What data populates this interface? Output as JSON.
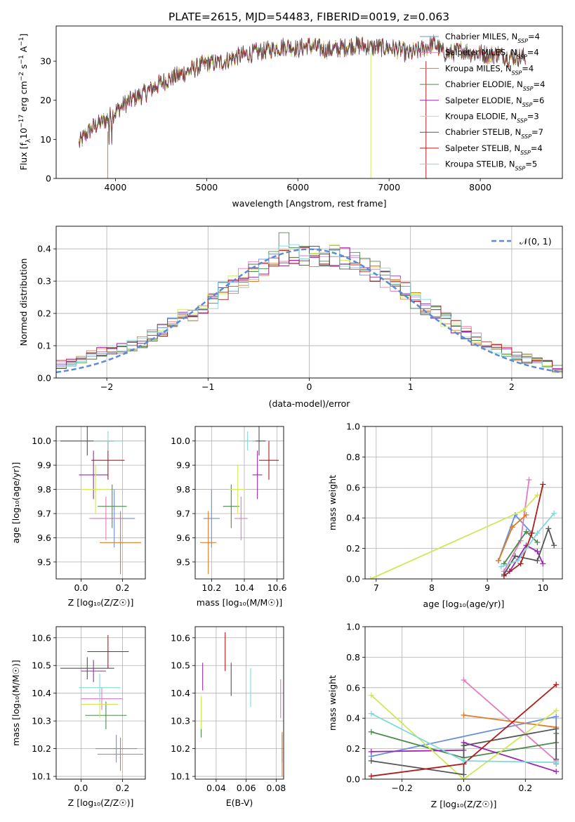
{
  "figure_title": "PLATE=2615, MJD=54483, FIBERID=0019, z=0.063",
  "colors": {
    "Chabrier MILES": "#6b8fd8",
    "Salpeter MILES": "#e07cc0",
    "Kroupa MILES": "#e07b28",
    "Chabrier ELODIE": "#4d8a4d",
    "Salpeter ELODIE": "#9b27b0",
    "Kroupa ELODIE": "#cfe85a",
    "Chabrier STELIB": "#555555",
    "Salpeter STELIB": "#b01c1c",
    "Kroupa STELIB": "#7fd8dc",
    "normal_curve": "#5b8ad6",
    "grid": "#b0b0b0"
  },
  "chart_data": [
    {
      "id": "spectrum",
      "type": "line",
      "title": "PLATE=2615, MJD=54483, FIBERID=0019, z=0.063",
      "xlabel": "wavelength [Angstrom, rest frame]",
      "ylabel_parts": [
        "Flux [f",
        "λ",
        "10",
        "−17",
        " erg cm",
        "−2",
        " s",
        "−1",
        " A",
        "−1",
        "]"
      ],
      "xlim": [
        3350,
        8900
      ],
      "ylim": [
        0,
        39
      ],
      "xticks": [
        "4000",
        "5000",
        "6000",
        "7000",
        "8000"
      ],
      "yticks": [
        "0",
        "10",
        "20",
        "30"
      ],
      "grid": false,
      "legend": "top-right",
      "continuum": {
        "x": [
          3600,
          3700,
          3800,
          3900,
          4000,
          4100,
          4200,
          4300,
          4400,
          4500,
          4600,
          4700,
          4800,
          4900,
          5000,
          5100,
          5200,
          5300,
          5400,
          5500,
          5600,
          5700,
          5800,
          5900,
          6000,
          6100,
          6200,
          6300,
          6400,
          6500,
          6600,
          6700,
          6800,
          6900,
          7000,
          7100,
          7200,
          7300,
          7400,
          7500,
          7600,
          7700,
          7800,
          7900,
          8000,
          8100,
          8200,
          8300,
          8400,
          8500
        ],
        "y": [
          9,
          12,
          14,
          15,
          17,
          19,
          20.5,
          21.5,
          23,
          24.5,
          25.5,
          26.5,
          27.5,
          28.5,
          29.5,
          29.5,
          30,
          31,
          31.5,
          32,
          32.5,
          33,
          33.5,
          34,
          33,
          34,
          33.5,
          33,
          33,
          33.5,
          34,
          34,
          33.5,
          33.5,
          33.5,
          33,
          32,
          32.5,
          33.5,
          34.5,
          32,
          32,
          33,
          32,
          32,
          31.5,
          32,
          31,
          31,
          31
        ]
      },
      "series": [
        {
          "name": "Chabrier MILES, N",
          "sub": "SSP",
          "tail": "=4"
        },
        {
          "name": "Salpeter MILES, N",
          "sub": "SSP",
          "tail": "=4"
        },
        {
          "name": "Kroupa MILES, N",
          "sub": "SSP",
          "tail": "=4"
        },
        {
          "name": "Chabrier ELODIE, N",
          "sub": "SSP",
          "tail": "=4"
        },
        {
          "name": "Salpeter ELODIE, N",
          "sub": "SSP",
          "tail": "=6"
        },
        {
          "name": "Kroupa ELODIE, N",
          "sub": "SSP",
          "tail": "=3"
        },
        {
          "name": "Chabrier STELIB, N",
          "sub": "SSP",
          "tail": "=7"
        },
        {
          "name": "Salpeter STELIB, N",
          "sub": "SSP",
          "tail": "=4"
        },
        {
          "name": "Kroupa STELIB, N",
          "sub": "SSP",
          "tail": "=5"
        }
      ]
    },
    {
      "id": "residuals",
      "type": "line",
      "xlabel": "(data-model)/error",
      "ylabel": "Normed distribution",
      "xlim": [
        -2.5,
        2.5
      ],
      "ylim": [
        0,
        0.47
      ],
      "xticks": [
        "−2",
        "−1",
        "0",
        "1",
        "2"
      ],
      "yticks": [
        "0.0",
        "0.1",
        "0.2",
        "0.3",
        "0.4"
      ],
      "grid": true,
      "legend": "top-right",
      "legend_label": "𝒩(0, 1)",
      "bin_edges": [
        -2.5,
        -2.4,
        -2.3,
        -2.2,
        -2.1,
        -2.0,
        -1.9,
        -1.8,
        -1.7,
        -1.6,
        -1.5,
        -1.4,
        -1.3,
        -1.2,
        -1.1,
        -1.0,
        -0.9,
        -0.8,
        -0.7,
        -0.6,
        -0.5,
        -0.4,
        -0.3,
        -0.2,
        -0.1,
        0.0,
        0.1,
        0.2,
        0.3,
        0.4,
        0.5,
        0.6,
        0.7,
        0.8,
        0.9,
        1.0,
        1.1,
        1.2,
        1.3,
        1.4,
        1.5,
        1.6,
        1.7,
        1.8,
        1.9,
        2.0,
        2.1,
        2.2,
        2.3,
        2.4,
        2.5
      ],
      "hist_envelope": [
        0.04,
        0.05,
        0.06,
        0.07,
        0.08,
        0.08,
        0.09,
        0.1,
        0.11,
        0.13,
        0.15,
        0.17,
        0.19,
        0.2,
        0.22,
        0.24,
        0.27,
        0.29,
        0.31,
        0.33,
        0.35,
        0.37,
        0.38,
        0.38,
        0.38,
        0.38,
        0.38,
        0.38,
        0.37,
        0.36,
        0.35,
        0.33,
        0.31,
        0.29,
        0.27,
        0.24,
        0.22,
        0.2,
        0.18,
        0.16,
        0.14,
        0.12,
        0.1,
        0.09,
        0.08,
        0.07,
        0.06,
        0.05,
        0.04,
        0.03
      ],
      "hist_peak_max": 0.45
    },
    {
      "id": "age-vs-Z",
      "type": "scatter",
      "xlabel": "Z [log₁₀(Z/Z☉)]",
      "ylabel": "age  [log₁₀(age/yr)]",
      "xlim": [
        -0.12,
        0.31
      ],
      "ylim": [
        9.43,
        10.06
      ],
      "xticks": [
        "0.0",
        "0.2"
      ],
      "yticks": [
        "9.5",
        "9.6",
        "9.7",
        "9.8",
        "9.9",
        "10.0"
      ],
      "grid": true,
      "points": [
        {
          "series": "Chabrier MILES",
          "x": 0.16,
          "xerr": 0.1,
          "y": 9.68,
          "yerr": 0.12
        },
        {
          "series": "Salpeter MILES",
          "x": 0.12,
          "xerr": 0.08,
          "y": 9.68,
          "yerr": 0.09
        },
        {
          "series": "Kroupa MILES",
          "x": 0.19,
          "xerr": 0.1,
          "y": 9.58,
          "yerr": 0.13
        },
        {
          "series": "Chabrier ELODIE",
          "x": 0.15,
          "xerr": 0.07,
          "y": 9.73,
          "yerr": 0.09
        },
        {
          "series": "Salpeter ELODIE",
          "x": 0.06,
          "xerr": 0.07,
          "y": 9.86,
          "yerr": 0.1
        },
        {
          "series": "Kroupa ELODIE",
          "x": 0.07,
          "xerr": 0.07,
          "y": 9.8,
          "yerr": 0.1
        },
        {
          "series": "Chabrier STELIB",
          "x": 0.03,
          "xerr": 0.13,
          "y": 10.0,
          "yerr": 0.06
        },
        {
          "series": "Salpeter STELIB",
          "x": 0.13,
          "xerr": 0.08,
          "y": 9.92,
          "yerr": 0.08
        },
        {
          "series": "Kroupa STELIB",
          "x": 0.13,
          "xerr": 0.07,
          "y": 10.0,
          "yerr": 0.04
        }
      ]
    },
    {
      "id": "age-vs-mass",
      "type": "scatter",
      "xlabel": "mass [log₁₀(M/M☉)]",
      "ylabel": "",
      "xlim": [
        10.1,
        10.64
      ],
      "ylim": [
        9.43,
        10.06
      ],
      "xticks": [
        "10.2",
        "10.4",
        "10.6"
      ],
      "yticks": [
        "9.5",
        "9.6",
        "9.7",
        "9.8",
        "9.9",
        "10.0"
      ],
      "grid": true,
      "points": [
        {
          "series": "Chabrier MILES",
          "x": 10.2,
          "xerr": 0.05,
          "y": 9.68,
          "yerr": 0.12
        },
        {
          "series": "Salpeter MILES",
          "x": 10.38,
          "xerr": 0.04,
          "y": 9.68,
          "yerr": 0.09
        },
        {
          "series": "Kroupa MILES",
          "x": 10.18,
          "xerr": 0.05,
          "y": 9.58,
          "yerr": 0.13
        },
        {
          "series": "Chabrier ELODIE",
          "x": 10.32,
          "xerr": 0.05,
          "y": 9.73,
          "yerr": 0.09
        },
        {
          "series": "Salpeter ELODIE",
          "x": 10.48,
          "xerr": 0.03,
          "y": 9.86,
          "yerr": 0.1
        },
        {
          "series": "Kroupa ELODIE",
          "x": 10.36,
          "xerr": 0.05,
          "y": 9.8,
          "yerr": 0.1
        },
        {
          "series": "Chabrier STELIB",
          "x": 10.49,
          "xerr": 0.04,
          "y": 10.0,
          "yerr": 0.06
        },
        {
          "series": "Salpeter STELIB",
          "x": 10.55,
          "xerr": 0.06,
          "y": 9.92,
          "yerr": 0.08
        },
        {
          "series": "Kroupa STELIB",
          "x": 10.42,
          "xerr": 0.05,
          "y": 10.0,
          "yerr": 0.04
        }
      ]
    },
    {
      "id": "weight-vs-age",
      "type": "line",
      "xlabel": "age  [log₁₀(age/yr)]",
      "ylabel": "mass weight",
      "xlim": [
        6.8,
        10.35
      ],
      "ylim": [
        0,
        1.0
      ],
      "xticks": [
        "7",
        "8",
        "9",
        "10"
      ],
      "yticks": [
        "0.0",
        "0.2",
        "0.4",
        "0.6",
        "0.8",
        "1.0"
      ],
      "grid": true,
      "series": [
        {
          "name": "Chabrier MILES",
          "x": [
            9.2,
            9.5,
            9.8
          ],
          "y": [
            0.12,
            0.42,
            0.3
          ]
        },
        {
          "name": "Salpeter MILES",
          "x": [
            9.3,
            9.6,
            9.75
          ],
          "y": [
            0.05,
            0.25,
            0.65
          ]
        },
        {
          "name": "Kroupa MILES",
          "x": [
            9.2,
            9.45,
            9.7
          ],
          "y": [
            0.12,
            0.34,
            0.42
          ]
        },
        {
          "name": "Chabrier ELODIE",
          "x": [
            9.3,
            9.7,
            9.9
          ],
          "y": [
            0.1,
            0.31,
            0.24
          ]
        },
        {
          "name": "Salpeter ELODIE",
          "x": [
            9.4,
            9.7,
            9.9,
            10.0
          ],
          "y": [
            0.05,
            0.22,
            0.18,
            0.1
          ]
        },
        {
          "name": "Kroupa ELODIE",
          "x": [
            6.9,
            9.65,
            9.9
          ],
          "y": [
            0.0,
            0.45,
            0.55
          ]
        },
        {
          "name": "Chabrier STELIB",
          "x": [
            9.3,
            9.5,
            9.9,
            10.1,
            10.2
          ],
          "y": [
            0.03,
            0.15,
            0.12,
            0.33,
            0.22
          ]
        },
        {
          "name": "Salpeter STELIB",
          "x": [
            9.3,
            9.6,
            9.8,
            10.0
          ],
          "y": [
            0.02,
            0.1,
            0.3,
            0.62
          ]
        },
        {
          "name": "Kroupa STELIB",
          "x": [
            9.25,
            9.55,
            9.9,
            10.2
          ],
          "y": [
            0.08,
            0.12,
            0.3,
            0.43
          ]
        }
      ]
    },
    {
      "id": "mass-vs-Z",
      "type": "scatter",
      "xlabel": "Z [log₁₀(Z/Z☉)]",
      "ylabel": "mass [log₁₀(M/M☉)]",
      "xlim": [
        -0.12,
        0.31
      ],
      "ylim": [
        10.09,
        10.64
      ],
      "xticks": [
        "0.0",
        "0.2"
      ],
      "yticks": [
        "10.1",
        "10.2",
        "10.3",
        "10.4",
        "10.5",
        "10.6"
      ],
      "grid": true,
      "points": [
        {
          "series": "Chabrier MILES",
          "x": 0.17,
          "xerr": 0.1,
          "y": 10.2,
          "yerr": 0.05
        },
        {
          "series": "Salpeter MILES",
          "x": 0.1,
          "xerr": 0.1,
          "y": 10.38,
          "yerr": 0.04
        },
        {
          "series": "Kroupa MILES",
          "x": 0.19,
          "xerr": 0.11,
          "y": 10.18,
          "yerr": 0.06
        },
        {
          "series": "Chabrier ELODIE",
          "x": 0.12,
          "xerr": 0.1,
          "y": 10.32,
          "yerr": 0.05
        },
        {
          "series": "Salpeter ELODIE",
          "x": 0.06,
          "xerr": 0.06,
          "y": 10.48,
          "yerr": 0.04
        },
        {
          "series": "Kroupa ELODIE",
          "x": 0.09,
          "xerr": 0.09,
          "y": 10.36,
          "yerr": 0.05
        },
        {
          "series": "Chabrier STELIB",
          "x": 0.03,
          "xerr": 0.13,
          "y": 10.49,
          "yerr": 0.04
        },
        {
          "series": "Salpeter STELIB",
          "x": 0.13,
          "xerr": 0.1,
          "y": 10.55,
          "yerr": 0.06
        },
        {
          "series": "Kroupa STELIB",
          "x": 0.09,
          "xerr": 0.1,
          "y": 10.42,
          "yerr": 0.05
        }
      ]
    },
    {
      "id": "mass-vs-ebv",
      "type": "scatter",
      "xlabel": "E(B-V)",
      "ylabel": "",
      "xlim": [
        0.026,
        0.085
      ],
      "ylim": [
        10.09,
        10.64
      ],
      "xticks": [
        "0.04",
        "0.06",
        "0.08"
      ],
      "yticks": [
        "10.1",
        "10.2",
        "10.3",
        "10.4",
        "10.5",
        "10.6"
      ],
      "grid": true,
      "points": [
        {
          "series": "Chabrier MILES",
          "x": 0.084,
          "xerr": 0,
          "y": 10.2,
          "yerr": 0.05
        },
        {
          "series": "Salpeter MILES",
          "x": 0.083,
          "xerr": 0,
          "y": 10.38,
          "yerr": 0.07
        },
        {
          "series": "Kroupa MILES",
          "x": 0.084,
          "xerr": 0,
          "y": 10.18,
          "yerr": 0.08
        },
        {
          "series": "Chabrier ELODIE",
          "x": 0.03,
          "xerr": 0,
          "y": 10.31,
          "yerr": 0.07
        },
        {
          "series": "Salpeter ELODIE",
          "x": 0.031,
          "xerr": 0,
          "y": 10.46,
          "yerr": 0.05
        },
        {
          "series": "Kroupa ELODIE",
          "x": 0.03,
          "xerr": 0,
          "y": 10.33,
          "yerr": 0.06
        },
        {
          "series": "Chabrier STELIB",
          "x": 0.05,
          "xerr": 0,
          "y": 10.45,
          "yerr": 0.06
        },
        {
          "series": "Salpeter STELIB",
          "x": 0.046,
          "xerr": 0,
          "y": 10.55,
          "yerr": 0.07
        },
        {
          "series": "Kroupa STELIB",
          "x": 0.063,
          "xerr": 0,
          "y": 10.42,
          "yerr": 0.07
        }
      ]
    },
    {
      "id": "weight-vs-Z",
      "type": "line",
      "xlabel": "Z [log₁₀(Z/Z☉)]",
      "ylabel": "mass weight",
      "xlim": [
        -0.32,
        0.32
      ],
      "ylim": [
        0,
        1.0
      ],
      "xticks": [
        "−0.2",
        "0.0",
        "0.2"
      ],
      "yticks": [
        "0.0",
        "0.2",
        "0.4",
        "0.6",
        "0.8",
        "1.0"
      ],
      "grid": true,
      "series": [
        {
          "name": "Chabrier MILES",
          "x": [
            -0.3,
            0.3,
            0.3
          ],
          "y": [
            0.15,
            0.41,
            0.1
          ]
        },
        {
          "name": "Salpeter MILES",
          "x": [
            0.0,
            0.3
          ],
          "y": [
            0.65,
            0.12
          ]
        },
        {
          "name": "Kroupa MILES",
          "x": [
            0.0,
            0.3
          ],
          "y": [
            0.42,
            0.34
          ]
        },
        {
          "name": "Chabrier ELODIE",
          "x": [
            -0.3,
            0.0,
            0.3,
            0.3
          ],
          "y": [
            0.31,
            0.14,
            0.24,
            0.3
          ]
        },
        {
          "name": "Salpeter ELODIE",
          "x": [
            -0.3,
            0.0,
            0.0,
            0.3
          ],
          "y": [
            0.18,
            0.19,
            0.24,
            0.05
          ]
        },
        {
          "name": "Kroupa ELODIE",
          "x": [
            -0.3,
            0.0,
            0.3
          ],
          "y": [
            0.55,
            0.0,
            0.45
          ]
        },
        {
          "name": "Chabrier STELIB",
          "x": [
            -0.3,
            0.0,
            0.0,
            0.3,
            0.3
          ],
          "y": [
            0.12,
            0.03,
            0.22,
            0.33,
            0.13
          ]
        },
        {
          "name": "Salpeter STELIB",
          "x": [
            -0.3,
            0.0,
            0.3
          ],
          "y": [
            0.02,
            0.1,
            0.62
          ]
        },
        {
          "name": "Kroupa STELIB",
          "x": [
            -0.3,
            0.0,
            0.3
          ],
          "y": [
            0.43,
            0.12,
            0.11
          ]
        }
      ]
    }
  ]
}
